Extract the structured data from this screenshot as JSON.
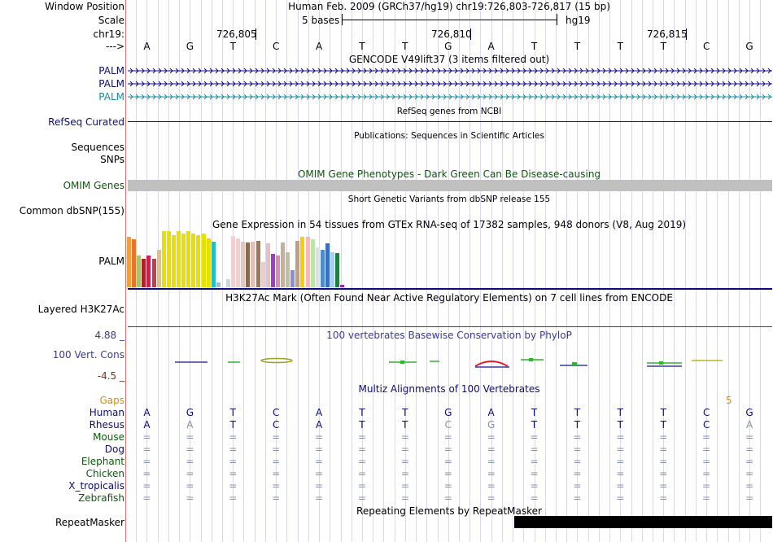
{
  "header": {
    "window_position_label": "Window Position",
    "scale_label": "Scale",
    "chrom_label": "chr19:",
    "strand_label": "--->",
    "window_position_value": "Human Feb. 2009 (GRCh37/hg19)   chr19:726,803-726,817 (15 bp)",
    "scale_text": "5 bases",
    "assembly": "hg19",
    "positions": [
      "726,805",
      "726,810",
      "726,815"
    ],
    "bases": [
      "A",
      "G",
      "T",
      "C",
      "A",
      "T",
      "T",
      "G",
      "A",
      "T",
      "T",
      "T",
      "T",
      "C",
      "G"
    ]
  },
  "tracks": {
    "gencode": {
      "title": "GENCODE V49lift37 (3 items filtered out)",
      "items": [
        "PALM",
        "PALM",
        "PALM"
      ],
      "color_main": "#0c0c78",
      "color_third": "#1a8aa0"
    },
    "refseq": {
      "title": "RefSeq genes from NCBI",
      "label": "RefSeq Curated",
      "color": "#0c0c78"
    },
    "publications": {
      "title": "Publications: Sequences in Scientific Articles",
      "label_line1": "Sequences",
      "label_line2": "SNPs"
    },
    "omim": {
      "title": "OMIM Gene Phenotypes - Dark Green Can Be Disease-causing",
      "label": "OMIM Genes",
      "color": "#0a5a0a"
    },
    "dbsnp": {
      "title": "Short Genetic Variants from dbSNP release 155",
      "label": "Common dbSNP(155)"
    },
    "gtex": {
      "title": "Gene Expression in 54 tissues from GTEx RNA-seq of 17382 samples, 948 donors (V8, Aug 2019)",
      "label": "PALM",
      "levels": [
        0.88,
        0.84,
        0.56,
        0.5,
        0.56,
        0.5,
        0.66,
        0.98,
        0.98,
        0.92,
        0.98,
        0.95,
        0.98,
        0.95,
        0.92,
        0.95,
        0.86,
        0.8,
        0.08,
        0.15,
        0.9,
        0.86,
        0.8,
        0.79,
        0.8,
        0.82,
        0.44,
        0.77,
        0.59,
        0.56,
        0.79,
        0.61,
        0.3,
        0.82,
        0.88,
        0.88,
        0.84,
        0.7,
        0.66,
        0.77,
        0.62,
        0.6,
        0.05
      ],
      "colors": [
        "#f0a040",
        "#e8752b",
        "#a3c472",
        "#b22222",
        "#d02050",
        "#c83c50",
        "#e0c080",
        "#e8e000",
        "#e8e000",
        "#e8e000",
        "#e8e000",
        "#e8e000",
        "#e8e000",
        "#e8e000",
        "#e8e000",
        "#e8e000",
        "#e8e000",
        "#20c0c8",
        "#a8bccc",
        "#c8d8dc",
        "#f0d0d0",
        "#f0d0d0",
        "#e0c8c8",
        "#8a6a4a",
        "#e0c0b8",
        "#a07858",
        "#e8d0c8",
        "#e8c0c0",
        "#9a40c0",
        "#d88ab8",
        "#c8b098",
        "#c0c0a0",
        "#8c8cd8",
        "#c0a080",
        "#f8d000",
        "#f8b8b8",
        "#b8e8a8",
        "#e0e0e0",
        "#4a8ad8",
        "#3870c0",
        "#a8d0e8",
        "#208040",
        "#a020c0"
      ]
    },
    "h3k27ac": {
      "title": "H3K27Ac Mark (Often Found Near Active Regulatory Elements) on 7 cell lines from ENCODE",
      "label": "Layered H3K27Ac"
    },
    "phylop": {
      "title": "100 vertebrates Basewise Conservation by PhyloP",
      "label": "100 Vert. Cons",
      "max": "4.88 _",
      "min": "-4.5 _",
      "color_title": "#3a3a98",
      "color_max": "#3a3a98",
      "color_min": "#8a2a10"
    },
    "multiz": {
      "title": "Multiz Alignments of 100 Vertebrates",
      "gaps_label": "Gaps",
      "gaps_value": "5",
      "species": [
        {
          "name": "Human",
          "seq": [
            "A",
            "G",
            "T",
            "C",
            "A",
            "T",
            "T",
            "G",
            "A",
            "T",
            "T",
            "T",
            "T",
            "C",
            "G"
          ],
          "color": "#0c0c78",
          "dim": []
        },
        {
          "name": "Rhesus",
          "seq": [
            "A",
            "A",
            "T",
            "C",
            "A",
            "T",
            "T",
            "C",
            "G",
            "T",
            "T",
            "T",
            "T",
            "C",
            "A"
          ],
          "color": "#0c0c78",
          "dim": [
            1,
            7,
            8,
            14
          ]
        },
        {
          "name": "Mouse",
          "seq": [
            "=",
            "=",
            "=",
            "=",
            "=",
            "=",
            "=",
            "=",
            "=",
            "=",
            "=",
            "=",
            "=",
            "=",
            "="
          ],
          "color": "#0a5a0a"
        },
        {
          "name": "Dog",
          "seq": [
            "=",
            "=",
            "=",
            "=",
            "=",
            "=",
            "=",
            "=",
            "=",
            "=",
            "=",
            "=",
            "=",
            "=",
            "="
          ],
          "color": "#0c0c78"
        },
        {
          "name": "Elephant",
          "seq": [
            "=",
            "=",
            "=",
            "=",
            "=",
            "=",
            "=",
            "=",
            "=",
            "=",
            "=",
            "=",
            "=",
            "=",
            "="
          ],
          "color": "#0a5a0a"
        },
        {
          "name": "Chicken",
          "seq": [
            "=",
            "=",
            "=",
            "=",
            "=",
            "=",
            "=",
            "=",
            "=",
            "=",
            "=",
            "=",
            "=",
            "=",
            "="
          ],
          "color": "#0a5a0a"
        },
        {
          "name": "X_tropicalis",
          "seq": [
            "=",
            "=",
            "=",
            "=",
            "=",
            "=",
            "=",
            "=",
            "=",
            "=",
            "=",
            "=",
            "=",
            "=",
            "="
          ],
          "color": "#0c0c78"
        },
        {
          "name": "Zebrafish",
          "seq": [
            "=",
            "=",
            "=",
            "=",
            "=",
            "=",
            "=",
            "=",
            "=",
            "=",
            "=",
            "=",
            "=",
            "=",
            "="
          ],
          "color": "#0a5a0a"
        }
      ]
    },
    "repeatmasker": {
      "title": "Repeating Elements by RepeatMasker",
      "label": "RepeatMasker"
    }
  },
  "colors": {
    "separator": "#e07070",
    "grid": "#d8d8f0",
    "gaps": "#e08a00",
    "omim_bar": "#c0c0c0"
  }
}
